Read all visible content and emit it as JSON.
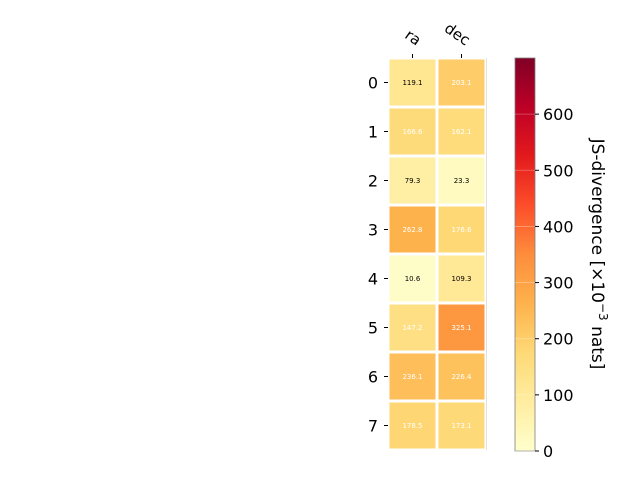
{
  "chart_data": {
    "type": "heatmap",
    "columns": [
      "ra",
      "dec"
    ],
    "rows": [
      "0",
      "1",
      "2",
      "3",
      "4",
      "5",
      "6",
      "7"
    ],
    "values": [
      [
        119.1,
        203.1
      ],
      [
        166.6,
        162.1
      ],
      [
        79.3,
        23.3
      ],
      [
        262.8,
        176.6
      ],
      [
        10.6,
        109.3
      ],
      [
        147.2,
        325.1
      ],
      [
        236.1,
        226.4
      ],
      [
        178.5,
        173.1
      ]
    ],
    "cell_labels": [
      [
        "119.1",
        "203.1"
      ],
      [
        "166.6",
        "162.1"
      ],
      [
        "79.3",
        "23.3"
      ],
      [
        "262.8",
        "176.6"
      ],
      [
        "10.6",
        "109.3"
      ],
      [
        "147.2",
        "325.1"
      ],
      [
        "236.1",
        "226.4"
      ],
      [
        "178.5",
        "173.1"
      ]
    ],
    "colorbar": {
      "label_main": "JS-divergence [×10",
      "label_exp": "−3",
      "label_unit": " nats]",
      "range": [
        0,
        700
      ],
      "ticks": [
        0,
        100,
        200,
        300,
        400,
        500,
        600
      ],
      "tick_labels": [
        "0",
        "100",
        "200",
        "300",
        "400",
        "500",
        "600"
      ],
      "colormap": "YlOrRd"
    }
  }
}
